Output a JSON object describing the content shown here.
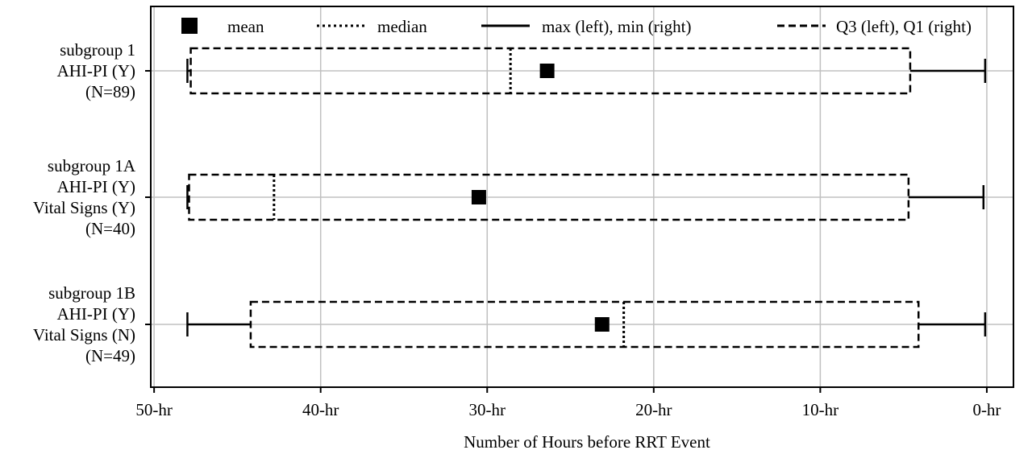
{
  "chart_data": {
    "type": "box",
    "xlabel": "Number of Hours before RRT Event",
    "x_reversed": true,
    "xlim": [
      50.2,
      -1.6
    ],
    "xticks": [
      50,
      40,
      30,
      20,
      10,
      0
    ],
    "xtick_labels": [
      "50-hr",
      "40-hr",
      "30-hr",
      "20-hr",
      "10-hr",
      "0-hr"
    ],
    "grid": true,
    "legend_position": "top",
    "legend": [
      {
        "key": "mean",
        "label": "mean"
      },
      {
        "key": "median",
        "label": "median"
      },
      {
        "key": "minmax",
        "label": "max (left), min (right)"
      },
      {
        "key": "quartile",
        "label": "Q3 (left), Q1 (right)"
      }
    ],
    "groups": [
      {
        "label_lines": [
          "subgroup 1",
          "AHI-PI (Y)",
          "(N=89)"
        ],
        "max": 48.0,
        "q3": 47.8,
        "median": 28.6,
        "mean": 26.4,
        "q1": 4.6,
        "min": 0.1
      },
      {
        "label_lines": [
          "subgroup 1A",
          "AHI-PI (Y)",
          "Vital Signs (Y)",
          "(N=40)"
        ],
        "max": 48.0,
        "q3": 47.9,
        "median": 42.8,
        "mean": 30.5,
        "q1": 4.7,
        "min": 0.2
      },
      {
        "label_lines": [
          "subgroup 1B",
          "AHI-PI (Y)",
          "Vital Signs (N)",
          "(N=49)"
        ],
        "max": 48.0,
        "q3": 44.2,
        "median": 21.8,
        "mean": 23.1,
        "q1": 4.1,
        "min": 0.1
      }
    ]
  }
}
